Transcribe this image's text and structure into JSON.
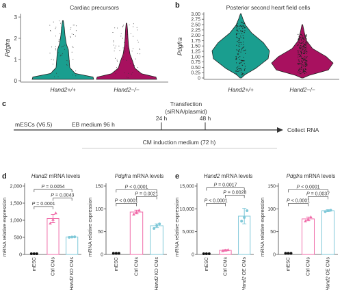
{
  "colors": {
    "teal": "#1a9e8f",
    "magenta": "#a8115f",
    "pink": "#f06aa8",
    "blue": "#7ec8d8",
    "black": "#111111"
  },
  "panel_a": {
    "letter": "a",
    "title": "Cardiac precursors",
    "ylabel": "Pdgfra",
    "yticks": [
      "0",
      "1",
      "2",
      "3"
    ],
    "groups": [
      "Hand2+/+",
      "Hand2−/−"
    ]
  },
  "panel_b": {
    "letter": "b",
    "title": "Posterior second heart field cells",
    "ylabel": "Pdgfra",
    "yticks": [
      "0",
      "0.25",
      "0.50",
      "0.75",
      "1.00",
      "1.25",
      "1.50",
      "1.75",
      "2.00",
      "2.25",
      "2.50",
      "2.75",
      "3.00"
    ],
    "groups": [
      "Hand2+/+",
      "Hand2−/−"
    ]
  },
  "panel_c": {
    "letter": "c",
    "transfection": "Transfection",
    "transfection_sub": "(siRNA/plasmid)",
    "mesc": "mESCs (V6.5)",
    "eb": "EB medium 96 h",
    "t24": "24 h",
    "t48": "48 h",
    "collect": "Collect RNA",
    "cm": "CM induction medium (72 h)"
  },
  "chart_data": [
    {
      "type": "bar",
      "panel": "d",
      "title": "Hand2 mRNA levels",
      "ylabel": "mRNA relative expression",
      "yticks": [
        "0",
        "500",
        "1,000",
        "1,500",
        "2,000"
      ],
      "ylim": [
        0,
        2000
      ],
      "categories": [
        "mESC",
        "Ctrl CMs",
        "Hand2 KD CMs"
      ],
      "values": [
        1,
        1050,
        510
      ],
      "errors": [
        0,
        120,
        10
      ],
      "points": [
        [
          1,
          1,
          1
        ],
        [
          910,
          1020,
          1210
        ],
        [
          500,
          510,
          515
        ]
      ],
      "pvalues": [
        {
          "from": 0,
          "to": 1,
          "label": "P = 0.0001",
          "y": 1400
        },
        {
          "from": 1,
          "to": 2,
          "label": "P = 0.0043",
          "y": 1650
        },
        {
          "from": 0,
          "to": 2,
          "label": "P = 0.0054",
          "y": 1900
        }
      ]
    },
    {
      "type": "bar",
      "panel": "d",
      "title": "Pdgfra mRNA levels",
      "ylabel": "mRNA relative expression",
      "yticks": [
        "0",
        "50",
        "100",
        "150"
      ],
      "ylim": [
        0,
        150
      ],
      "categories": [
        "mESC",
        "Ctrl CMs",
        "Hand2 KD CMs"
      ],
      "values": [
        1,
        93,
        63
      ],
      "errors": [
        0,
        4,
        4
      ],
      "points": [
        [
          1,
          1,
          1
        ],
        [
          88,
          93,
          97
        ],
        [
          57,
          63,
          67
        ]
      ],
      "pvalues": [
        {
          "from": 0,
          "to": 1,
          "label": "P < 0.0001",
          "y": 112
        },
        {
          "from": 1,
          "to": 2,
          "label": "P = 0.0021",
          "y": 127
        },
        {
          "from": 0,
          "to": 2,
          "label": "P < 0.0001",
          "y": 142
        }
      ]
    },
    {
      "type": "bar",
      "panel": "e",
      "title": "Hand2 mRNA levels",
      "ylabel": "mRNA relative expression",
      "yticks": [
        "0",
        "5,000",
        "10,000",
        "15,000"
      ],
      "ylim": [
        0,
        15000
      ],
      "categories": [
        "mESC",
        "Ctrl CMs",
        "Hand2 OE CMs"
      ],
      "values": [
        1,
        900,
        8400
      ],
      "errors": [
        0,
        150,
        1700
      ],
      "points": [
        [
          1,
          1,
          1
        ],
        [
          800,
          900,
          1000
        ],
        [
          7300,
          8100,
          9600
        ]
      ],
      "pvalues": [
        {
          "from": 0,
          "to": 1,
          "label": "P < 0.0001",
          "y": 11200
        },
        {
          "from": 1,
          "to": 2,
          "label": "P = 0.0028",
          "y": 13000
        },
        {
          "from": 0,
          "to": 2,
          "label": "P = 0.0017",
          "y": 14600
        }
      ]
    },
    {
      "type": "bar",
      "panel": "e",
      "title": "Pdgfra mRNA levels",
      "ylabel": "mRNA relative expression",
      "yticks": [
        "0",
        "50",
        "100",
        "150"
      ],
      "ylim": [
        0,
        150
      ],
      "categories": [
        "mESC",
        "Ctrl CMs",
        "Hand2 OE CMs"
      ],
      "values": [
        1,
        78,
        96
      ],
      "errors": [
        0,
        4,
        2
      ],
      "points": [
        [
          1,
          1,
          1
        ],
        [
          73,
          78,
          82
        ],
        [
          94,
          96,
          97
        ]
      ],
      "pvalues": [
        {
          "from": 0,
          "to": 1,
          "label": "P < 0.0001",
          "y": 112
        },
        {
          "from": 1,
          "to": 2,
          "label": "P = 0.0037",
          "y": 127
        },
        {
          "from": 0,
          "to": 2,
          "label": "P < 0.0001",
          "y": 142
        }
      ]
    }
  ],
  "panel_d_letter": "d",
  "panel_e_letter": "e"
}
